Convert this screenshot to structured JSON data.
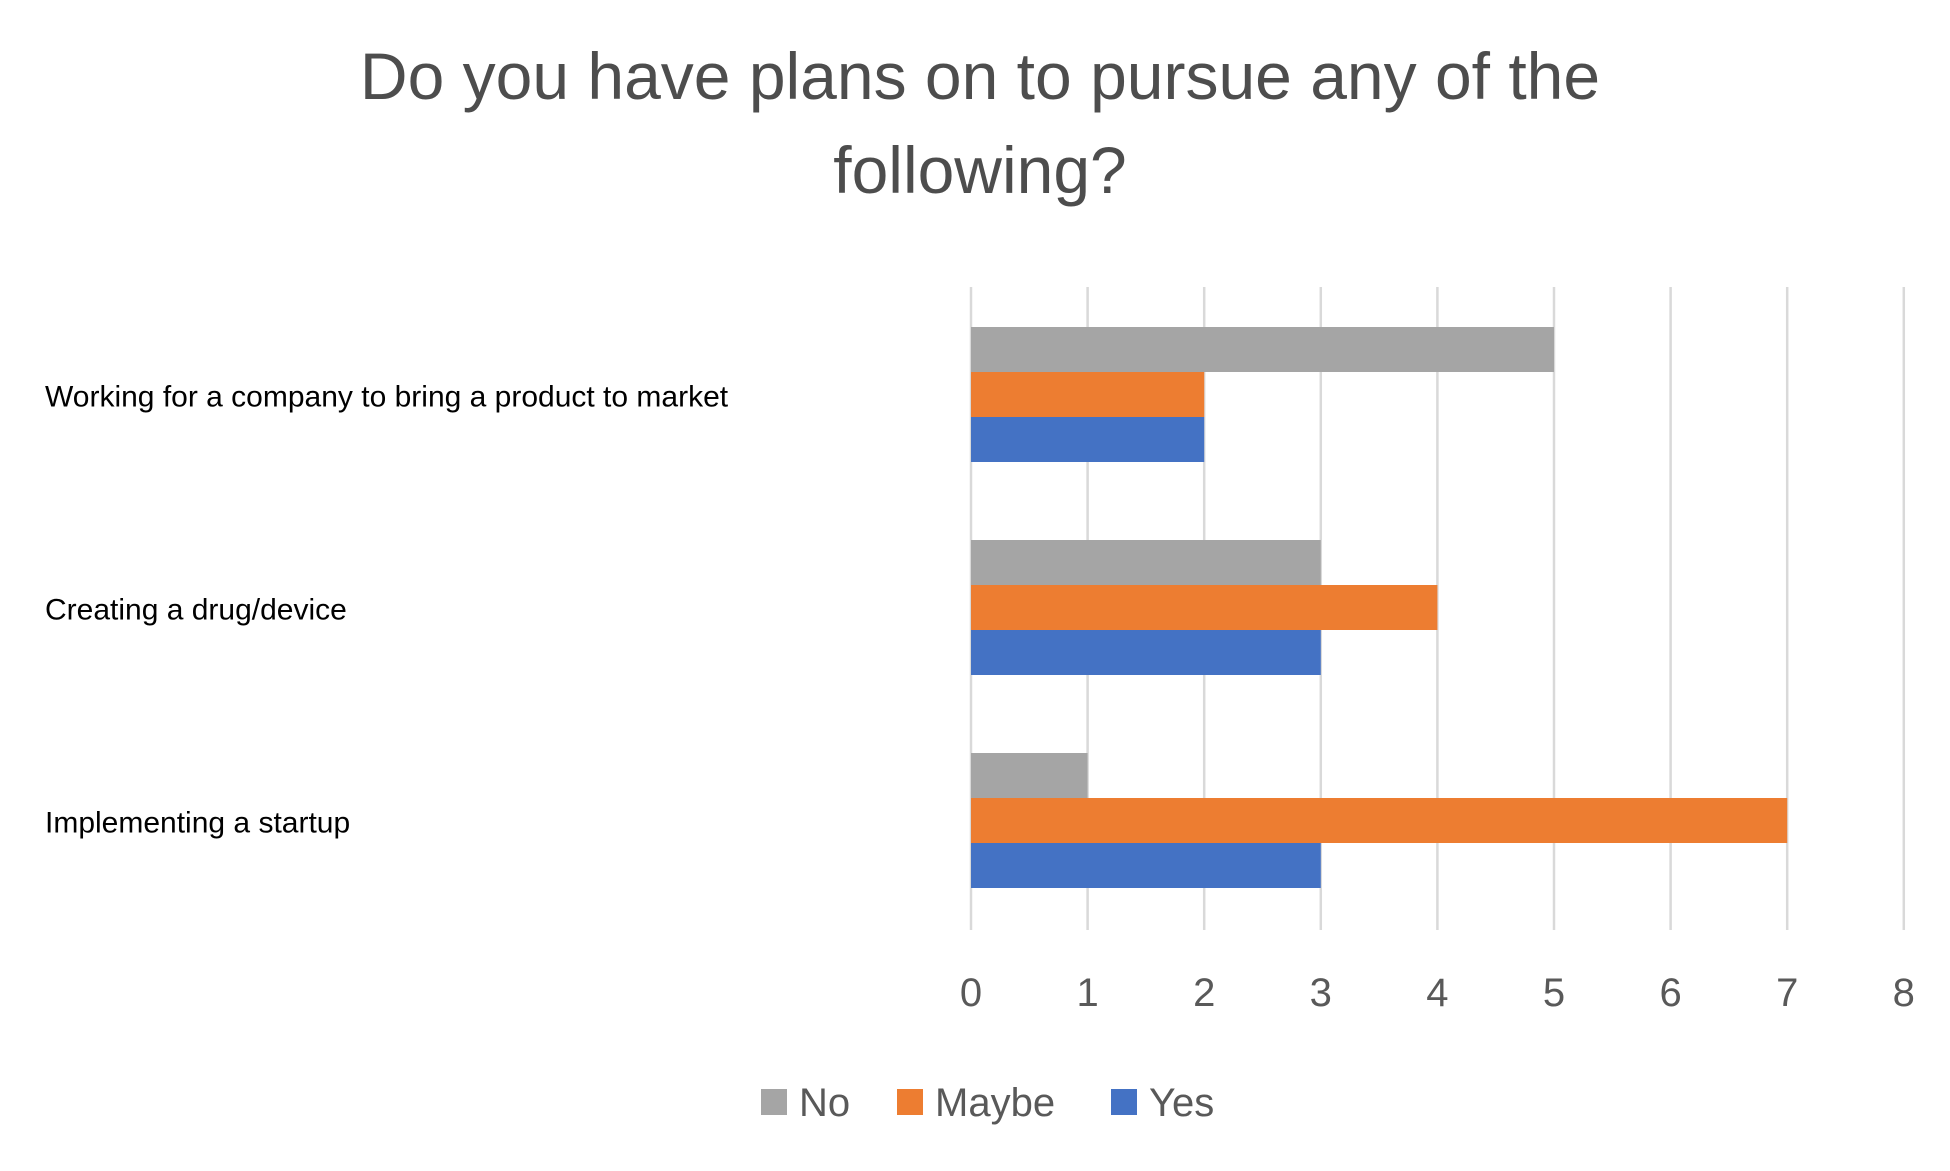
{
  "chart_data": {
    "type": "bar",
    "orientation": "horizontal",
    "title": [
      "Do you have plans on to pursue any of the",
      "following?"
    ],
    "categories": [
      "Working for a company to bring a product to market",
      "Creating a drug/device",
      "Implementing a startup"
    ],
    "series": [
      {
        "name": "No",
        "color": "#a5a5a5",
        "values": [
          5,
          3,
          1
        ]
      },
      {
        "name": "Maybe",
        "color": "#ed7d31",
        "values": [
          2,
          4,
          7
        ]
      },
      {
        "name": "Yes",
        "color": "#4472c4",
        "values": [
          2,
          3,
          3
        ]
      }
    ],
    "xlim": [
      0,
      8
    ],
    "xticks": [
      "0",
      "1",
      "2",
      "3",
      "4",
      "5",
      "6",
      "7",
      "8"
    ],
    "grid": true,
    "legend_position": "bottom"
  }
}
